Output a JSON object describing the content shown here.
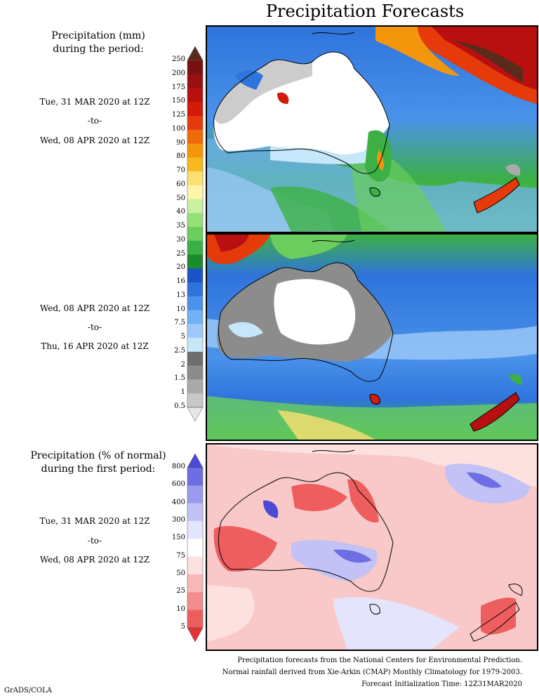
{
  "title": "Precipitation Forecasts",
  "precip_label": [
    "Precipitation (mm)",
    "during the period:"
  ],
  "period1": {
    "start": "Tue, 31 MAR 2020 at 12Z",
    "to": "-to-",
    "end": "Wed, 08 APR 2020 at 12Z"
  },
  "period2": {
    "start": "Wed, 08 APR 2020 at 12Z",
    "to": "-to-",
    "end": "Thu, 16 APR 2020 at 12Z"
  },
  "pct_label": [
    "Precipitation (% of normal)",
    "during the first period:"
  ],
  "period3": {
    "start": "Tue, 31 MAR 2020 at 12Z",
    "to": "-to-",
    "end": "Wed, 08 APR 2020 at 12Z"
  },
  "mm_scale": {
    "labels": [
      "250",
      "200",
      "175",
      "150",
      "125",
      "100",
      "90",
      "80",
      "70",
      "60",
      "50",
      "40",
      "35",
      "30",
      "25",
      "20",
      "16",
      "13",
      "10",
      "7.5",
      "5",
      "2.5",
      "2",
      "1.5",
      "1",
      "0.5"
    ],
    "colors": [
      "#5a2a1a",
      "#7a1010",
      "#9a1010",
      "#b81010",
      "#d41a0a",
      "#e63a0a",
      "#f06a0a",
      "#f4960c",
      "#f8b820",
      "#fbe070",
      "#fff4a8",
      "#c8f0a0",
      "#96e07a",
      "#6acd5e",
      "#3cb044",
      "#1a8c2a",
      "#1c54c8",
      "#2f74dc",
      "#4a92ea",
      "#72b2f4",
      "#9ecaf8",
      "#c6e6fa",
      "#6e6e6e",
      "#8c8c8c",
      "#aaaaaa",
      "#c8c8c8",
      "#e6e6e6"
    ]
  },
  "pct_scale": {
    "labels": [
      "800",
      "600",
      "400",
      "300",
      "150",
      "75",
      "50",
      "25",
      "10",
      "5"
    ],
    "colors": [
      "#4a4ad8",
      "#6e6ee4",
      "#9a9aee",
      "#c2c2f6",
      "#e4e4fc",
      "#ffffff",
      "#fde0e0",
      "#f9b8b8",
      "#f48c8c",
      "#ee5e5e",
      "#e43434"
    ]
  },
  "footer": [
    "Precipitation forecasts from the National Centers for Environmental Prediction.",
    "Normal rainfall derived from Xie-Arkin (CMAP) Monthly Climatology for 1979-2003.",
    "Forecast Initialization Time: 12Z31MAR2020"
  ],
  "credit": "GrADS/COLA"
}
